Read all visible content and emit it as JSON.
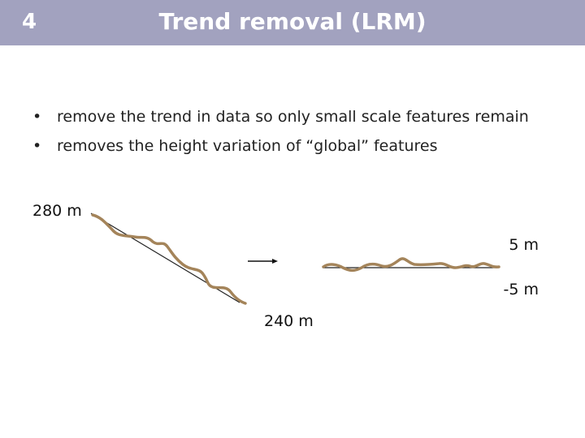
{
  "header": {
    "number": "4",
    "title": "Trend removal (LRM)"
  },
  "bullets": [
    "remove the trend in data so only small scale features remain",
    "removes the height variation of “global” features"
  ],
  "figure": {
    "left_top_label": "280 m",
    "left_bottom_label": "240 m",
    "right_top_label": "5 m",
    "right_bottom_label": "-5 m"
  }
}
